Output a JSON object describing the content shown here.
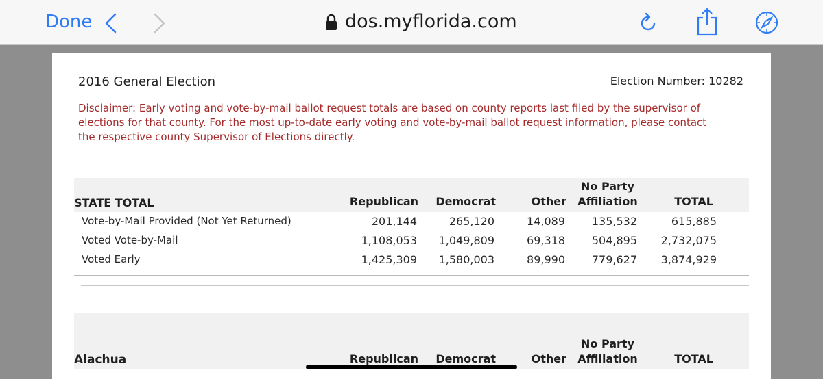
{
  "browser": {
    "done_label": "Done",
    "url": "dos.myflorida.com",
    "icons": [
      "back-chevron-icon",
      "forward-chevron-icon",
      "lock-icon",
      "reload-icon",
      "share-icon",
      "compass-icon"
    ],
    "accent": "#2f7cf6"
  },
  "doc": {
    "title": "2016 General Election",
    "election_number": "Election Number: 10282",
    "disclaimer": "Disclaimer:  Early voting and vote-by-mail ballot request totals are based on county reports last filed by the supervisor of elections for that county. For the most up-to-date early voting and vote-by-mail ballot request information, please contact the respective county Supervisor of Elections directly.",
    "disclaimer_color": "#a52a2a"
  },
  "columns": [
    "Republican",
    "Democrat",
    "Other",
    "No Party Affiliation",
    "TOTAL"
  ],
  "state_total": {
    "name": "STATE TOTAL",
    "rows": [
      {
        "label": "Vote-by-Mail Provided (Not Yet Returned)",
        "values": [
          "201,144",
          "265,120",
          "14,089",
          "135,532",
          "615,885"
        ]
      },
      {
        "label": "Voted Vote-by-Mail",
        "values": [
          "1,108,053",
          "1,049,809",
          "69,318",
          "504,895",
          "2,732,075"
        ]
      },
      {
        "label": "Voted Early",
        "values": [
          "1,425,309",
          "1,580,003",
          "89,990",
          "779,627",
          "3,874,929"
        ]
      }
    ]
  },
  "county": {
    "name": "Alachua"
  }
}
